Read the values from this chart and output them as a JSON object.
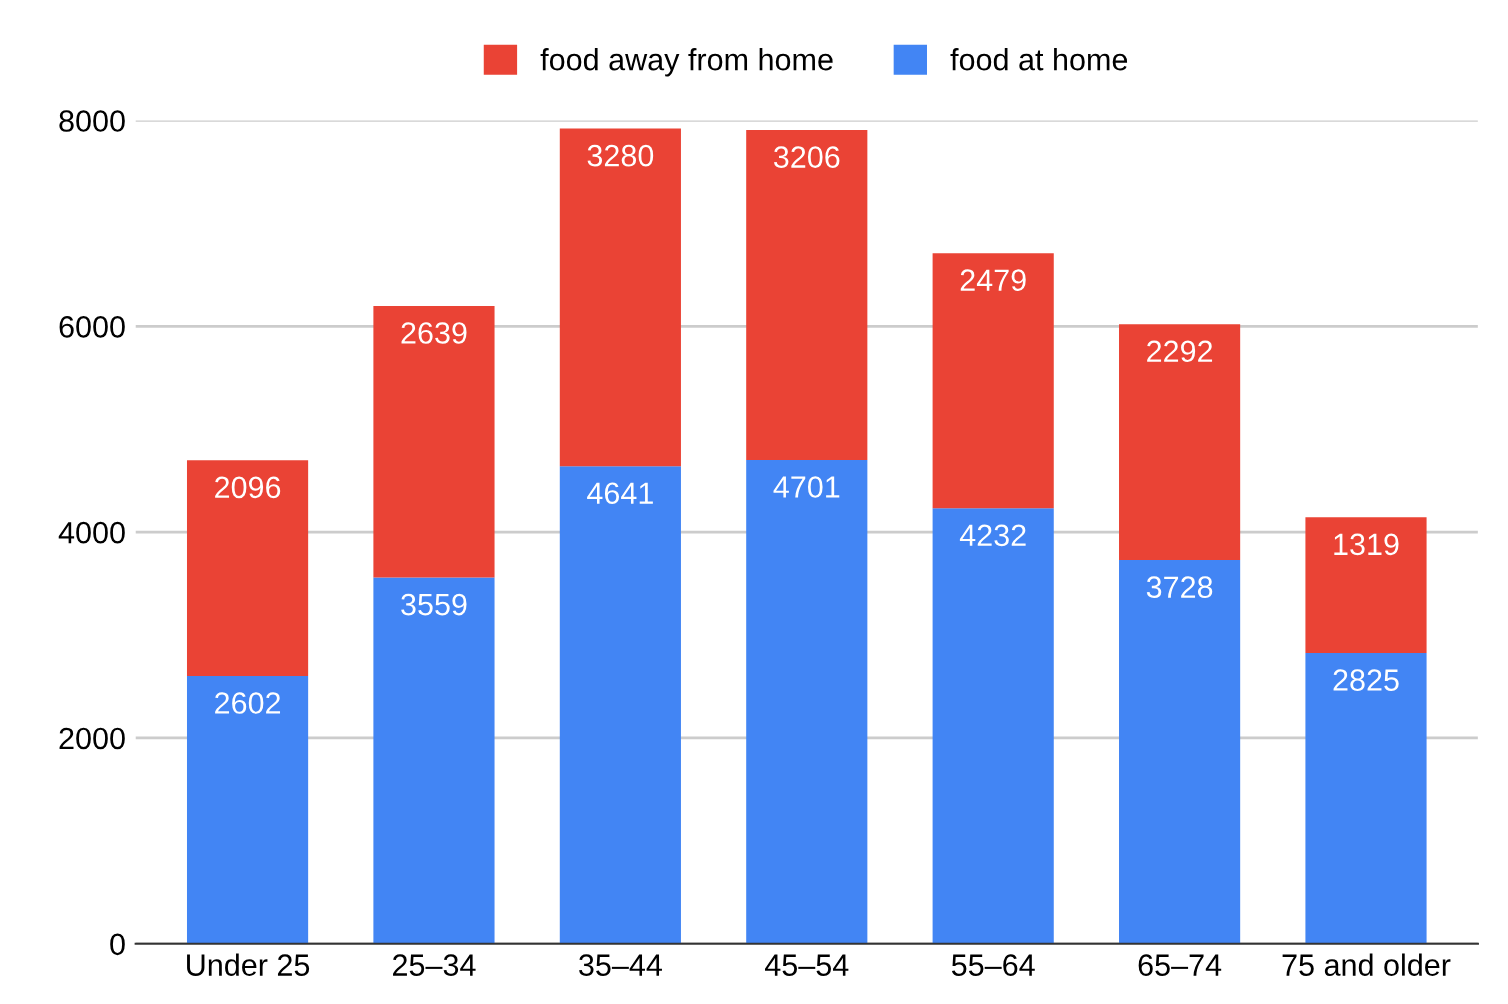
{
  "chart_data": {
    "type": "bar",
    "stacked": true,
    "categories": [
      "Under 25",
      "25–34",
      "35–44",
      "45–54",
      "55–64",
      "65–74",
      "75 and older"
    ],
    "series": [
      {
        "name": "food at home",
        "color": "#4285f4",
        "values": [
          2602,
          3559,
          4641,
          4701,
          4232,
          3728,
          2825
        ]
      },
      {
        "name": "food away from home",
        "color": "#ea4335",
        "values": [
          2096,
          2639,
          3280,
          3206,
          2479,
          2292,
          1319
        ]
      }
    ],
    "ylim": [
      0,
      8000
    ],
    "yticks": [
      0,
      2000,
      4000,
      6000,
      8000
    ],
    "grid": "y",
    "legend": "top",
    "data_labels": true
  }
}
